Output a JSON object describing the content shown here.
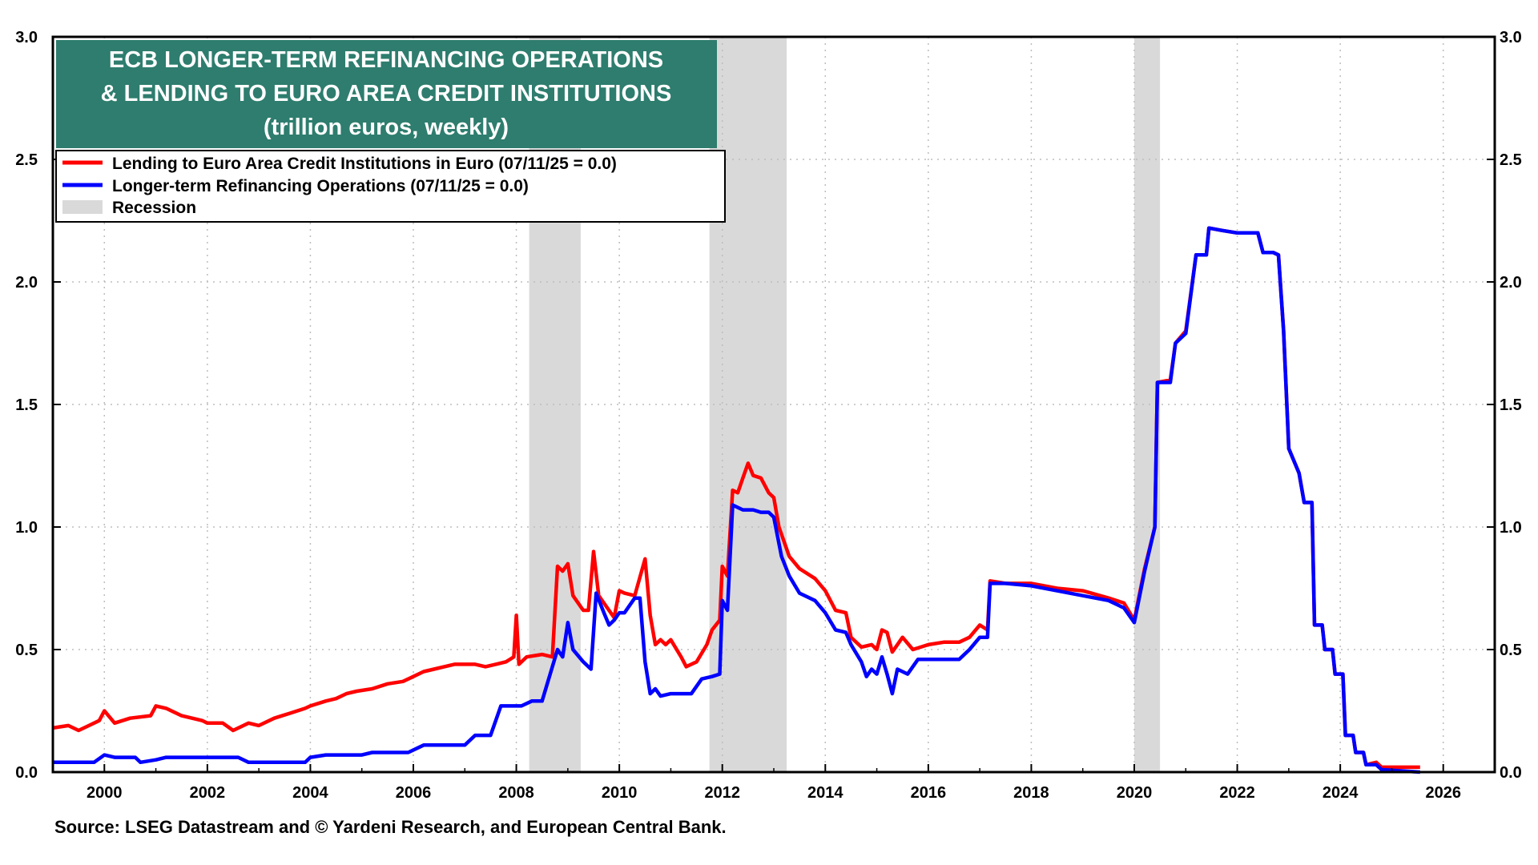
{
  "chart_data": {
    "type": "line",
    "title": "ECB LONGER-TERM REFINANCING OPERATIONS",
    "title_line2": "& LENDING TO EURO AREA CREDIT INSTITUTIONS",
    "subtitle": "(trillion euros, weekly)",
    "source": "Source: LSEG Datastream and © Yardeni Research, and European Central Bank.",
    "colors": {
      "title_bg": "#2e7d6e",
      "red": "#ff0000",
      "blue": "#0000ff",
      "recession": "#d9d9d9",
      "grid": "#bdbdbd"
    },
    "grid": true,
    "legend_position": "top-left",
    "xlim": [
      1999.0,
      2027.0
    ],
    "ylim": [
      0.0,
      3.0
    ],
    "x_ticks": [
      "2000",
      "2002",
      "2004",
      "2006",
      "2008",
      "2010",
      "2012",
      "2014",
      "2016",
      "2018",
      "2020",
      "2022",
      "2024",
      "2026"
    ],
    "y_ticks_left": [
      "0.0",
      "0.5",
      "1.0",
      "1.5",
      "2.0",
      "2.5",
      "3.0"
    ],
    "y_ticks_right": [
      "0.0",
      "0.5",
      "1.0",
      "1.5",
      "2.0",
      "2.5",
      "3.0"
    ],
    "legend": [
      {
        "label": "Lending to Euro Area Credit Institutions in Euro  (07/11/25 = 0.0)",
        "color": "#ff0000",
        "kind": "line"
      },
      {
        "label": "Longer-term Refinancing Operations (07/11/25 = 0.0)",
        "color": "#0000ff",
        "kind": "line"
      },
      {
        "label": "Recession",
        "color": "#d9d9d9",
        "kind": "box"
      }
    ],
    "recessions": [
      [
        2008.25,
        2009.25
      ],
      [
        2011.75,
        2013.25
      ],
      [
        2020.0,
        2020.5
      ]
    ],
    "series": [
      {
        "name": "Lending to Euro Area Credit Institutions in Euro",
        "color": "#ff0000",
        "points": [
          [
            1999.0,
            0.18
          ],
          [
            1999.3,
            0.19
          ],
          [
            1999.5,
            0.17
          ],
          [
            1999.7,
            0.19
          ],
          [
            1999.9,
            0.21
          ],
          [
            2000.0,
            0.25
          ],
          [
            2000.2,
            0.2
          ],
          [
            2000.5,
            0.22
          ],
          [
            2000.9,
            0.23
          ],
          [
            2001.0,
            0.27
          ],
          [
            2001.2,
            0.26
          ],
          [
            2001.5,
            0.23
          ],
          [
            2001.9,
            0.21
          ],
          [
            2002.0,
            0.2
          ],
          [
            2002.3,
            0.2
          ],
          [
            2002.5,
            0.17
          ],
          [
            2002.8,
            0.2
          ],
          [
            2003.0,
            0.19
          ],
          [
            2003.3,
            0.22
          ],
          [
            2003.6,
            0.24
          ],
          [
            2003.9,
            0.26
          ],
          [
            2004.0,
            0.27
          ],
          [
            2004.3,
            0.29
          ],
          [
            2004.5,
            0.3
          ],
          [
            2004.7,
            0.32
          ],
          [
            2004.9,
            0.33
          ],
          [
            2005.2,
            0.34
          ],
          [
            2005.5,
            0.36
          ],
          [
            2005.8,
            0.37
          ],
          [
            2006.0,
            0.39
          ],
          [
            2006.2,
            0.41
          ],
          [
            2006.4,
            0.42
          ],
          [
            2006.6,
            0.43
          ],
          [
            2006.8,
            0.44
          ],
          [
            2007.0,
            0.44
          ],
          [
            2007.2,
            0.44
          ],
          [
            2007.4,
            0.43
          ],
          [
            2007.6,
            0.44
          ],
          [
            2007.8,
            0.45
          ],
          [
            2007.95,
            0.47
          ],
          [
            2008.0,
            0.64
          ],
          [
            2008.05,
            0.44
          ],
          [
            2008.2,
            0.47
          ],
          [
            2008.5,
            0.48
          ],
          [
            2008.7,
            0.47
          ],
          [
            2008.8,
            0.84
          ],
          [
            2008.9,
            0.82
          ],
          [
            2009.0,
            0.85
          ],
          [
            2009.1,
            0.72
          ],
          [
            2009.3,
            0.66
          ],
          [
            2009.4,
            0.66
          ],
          [
            2009.5,
            0.9
          ],
          [
            2009.6,
            0.72
          ],
          [
            2009.8,
            0.66
          ],
          [
            2009.9,
            0.63
          ],
          [
            2010.0,
            0.74
          ],
          [
            2010.1,
            0.73
          ],
          [
            2010.3,
            0.72
          ],
          [
            2010.5,
            0.87
          ],
          [
            2010.6,
            0.64
          ],
          [
            2010.7,
            0.52
          ],
          [
            2010.8,
            0.54
          ],
          [
            2010.9,
            0.52
          ],
          [
            2011.0,
            0.54
          ],
          [
            2011.2,
            0.47
          ],
          [
            2011.3,
            0.43
          ],
          [
            2011.5,
            0.45
          ],
          [
            2011.7,
            0.52
          ],
          [
            2011.8,
            0.58
          ],
          [
            2011.95,
            0.62
          ],
          [
            2012.0,
            0.84
          ],
          [
            2012.1,
            0.8
          ],
          [
            2012.2,
            1.15
          ],
          [
            2012.3,
            1.14
          ],
          [
            2012.4,
            1.2
          ],
          [
            2012.5,
            1.26
          ],
          [
            2012.6,
            1.21
          ],
          [
            2012.75,
            1.2
          ],
          [
            2012.9,
            1.14
          ],
          [
            2013.0,
            1.12
          ],
          [
            2013.1,
            1.0
          ],
          [
            2013.3,
            0.88
          ],
          [
            2013.5,
            0.83
          ],
          [
            2013.8,
            0.79
          ],
          [
            2014.0,
            0.74
          ],
          [
            2014.2,
            0.66
          ],
          [
            2014.4,
            0.65
          ],
          [
            2014.5,
            0.55
          ],
          [
            2014.7,
            0.51
          ],
          [
            2014.9,
            0.52
          ],
          [
            2015.0,
            0.5
          ],
          [
            2015.1,
            0.58
          ],
          [
            2015.2,
            0.57
          ],
          [
            2015.3,
            0.49
          ],
          [
            2015.5,
            0.55
          ],
          [
            2015.7,
            0.5
          ],
          [
            2016.0,
            0.52
          ],
          [
            2016.3,
            0.53
          ],
          [
            2016.6,
            0.53
          ],
          [
            2016.8,
            0.55
          ],
          [
            2017.0,
            0.6
          ],
          [
            2017.15,
            0.58
          ],
          [
            2017.2,
            0.78
          ],
          [
            2017.5,
            0.77
          ],
          [
            2018.0,
            0.77
          ],
          [
            2018.5,
            0.75
          ],
          [
            2019.0,
            0.74
          ],
          [
            2019.5,
            0.71
          ],
          [
            2019.8,
            0.69
          ],
          [
            2020.0,
            0.62
          ],
          [
            2020.2,
            0.83
          ],
          [
            2020.4,
            1.0
          ],
          [
            2020.45,
            1.59
          ],
          [
            2020.7,
            1.6
          ],
          [
            2020.8,
            1.75
          ],
          [
            2021.0,
            1.8
          ],
          [
            2021.2,
            2.11
          ],
          [
            2021.4,
            2.11
          ],
          [
            2021.45,
            2.22
          ],
          [
            2021.7,
            2.21
          ],
          [
            2022.0,
            2.2
          ],
          [
            2022.4,
            2.2
          ],
          [
            2022.5,
            2.12
          ],
          [
            2022.7,
            2.12
          ],
          [
            2022.8,
            2.11
          ],
          [
            2022.9,
            1.8
          ],
          [
            2023.0,
            1.32
          ],
          [
            2023.2,
            1.22
          ],
          [
            2023.3,
            1.1
          ],
          [
            2023.45,
            1.1
          ],
          [
            2023.5,
            0.6
          ],
          [
            2023.65,
            0.6
          ],
          [
            2023.7,
            0.5
          ],
          [
            2023.85,
            0.5
          ],
          [
            2023.9,
            0.4
          ],
          [
            2024.05,
            0.4
          ],
          [
            2024.1,
            0.15
          ],
          [
            2024.25,
            0.15
          ],
          [
            2024.3,
            0.08
          ],
          [
            2024.45,
            0.08
          ],
          [
            2024.5,
            0.03
          ],
          [
            2024.7,
            0.04
          ],
          [
            2024.8,
            0.02
          ],
          [
            2025.55,
            0.02
          ]
        ]
      },
      {
        "name": "Longer-term Refinancing Operations",
        "color": "#0000ff",
        "points": [
          [
            1999.0,
            0.04
          ],
          [
            1999.8,
            0.04
          ],
          [
            2000.0,
            0.07
          ],
          [
            2000.2,
            0.06
          ],
          [
            2000.6,
            0.06
          ],
          [
            2000.7,
            0.04
          ],
          [
            2001.0,
            0.05
          ],
          [
            2001.2,
            0.06
          ],
          [
            2002.6,
            0.06
          ],
          [
            2002.8,
            0.04
          ],
          [
            2003.9,
            0.04
          ],
          [
            2004.0,
            0.06
          ],
          [
            2004.3,
            0.07
          ],
          [
            2005.0,
            0.07
          ],
          [
            2005.2,
            0.08
          ],
          [
            2005.9,
            0.08
          ],
          [
            2006.2,
            0.11
          ],
          [
            2007.0,
            0.11
          ],
          [
            2007.2,
            0.15
          ],
          [
            2007.5,
            0.15
          ],
          [
            2007.7,
            0.27
          ],
          [
            2007.9,
            0.27
          ],
          [
            2008.1,
            0.27
          ],
          [
            2008.3,
            0.29
          ],
          [
            2008.5,
            0.29
          ],
          [
            2008.8,
            0.5
          ],
          [
            2008.9,
            0.47
          ],
          [
            2009.0,
            0.61
          ],
          [
            2009.1,
            0.5
          ],
          [
            2009.3,
            0.45
          ],
          [
            2009.45,
            0.42
          ],
          [
            2009.55,
            0.73
          ],
          [
            2009.7,
            0.65
          ],
          [
            2009.8,
            0.6
          ],
          [
            2009.9,
            0.62
          ],
          [
            2010.0,
            0.65
          ],
          [
            2010.1,
            0.65
          ],
          [
            2010.3,
            0.71
          ],
          [
            2010.4,
            0.71
          ],
          [
            2010.5,
            0.45
          ],
          [
            2010.6,
            0.32
          ],
          [
            2010.7,
            0.34
          ],
          [
            2010.8,
            0.31
          ],
          [
            2011.0,
            0.32
          ],
          [
            2011.2,
            0.32
          ],
          [
            2011.4,
            0.32
          ],
          [
            2011.6,
            0.38
          ],
          [
            2011.8,
            0.39
          ],
          [
            2011.95,
            0.4
          ],
          [
            2012.0,
            0.7
          ],
          [
            2012.1,
            0.66
          ],
          [
            2012.2,
            1.09
          ],
          [
            2012.4,
            1.07
          ],
          [
            2012.6,
            1.07
          ],
          [
            2012.75,
            1.06
          ],
          [
            2012.9,
            1.06
          ],
          [
            2013.0,
            1.04
          ],
          [
            2013.15,
            0.88
          ],
          [
            2013.3,
            0.8
          ],
          [
            2013.5,
            0.73
          ],
          [
            2013.8,
            0.7
          ],
          [
            2014.0,
            0.65
          ],
          [
            2014.2,
            0.58
          ],
          [
            2014.4,
            0.57
          ],
          [
            2014.5,
            0.52
          ],
          [
            2014.7,
            0.45
          ],
          [
            2014.8,
            0.39
          ],
          [
            2014.9,
            0.42
          ],
          [
            2015.0,
            0.4
          ],
          [
            2015.1,
            0.47
          ],
          [
            2015.2,
            0.4
          ],
          [
            2015.3,
            0.32
          ],
          [
            2015.4,
            0.42
          ],
          [
            2015.6,
            0.4
          ],
          [
            2015.8,
            0.46
          ],
          [
            2016.0,
            0.46
          ],
          [
            2016.3,
            0.46
          ],
          [
            2016.6,
            0.46
          ],
          [
            2016.8,
            0.5
          ],
          [
            2017.0,
            0.55
          ],
          [
            2017.15,
            0.55
          ],
          [
            2017.2,
            0.77
          ],
          [
            2017.5,
            0.77
          ],
          [
            2018.0,
            0.76
          ],
          [
            2018.5,
            0.74
          ],
          [
            2019.0,
            0.72
          ],
          [
            2019.5,
            0.7
          ],
          [
            2019.8,
            0.67
          ],
          [
            2020.0,
            0.61
          ],
          [
            2020.2,
            0.82
          ],
          [
            2020.4,
            1.0
          ],
          [
            2020.45,
            1.59
          ],
          [
            2020.7,
            1.59
          ],
          [
            2020.8,
            1.75
          ],
          [
            2021.0,
            1.79
          ],
          [
            2021.2,
            2.11
          ],
          [
            2021.4,
            2.11
          ],
          [
            2021.45,
            2.22
          ],
          [
            2021.7,
            2.21
          ],
          [
            2022.0,
            2.2
          ],
          [
            2022.4,
            2.2
          ],
          [
            2022.5,
            2.12
          ],
          [
            2022.7,
            2.12
          ],
          [
            2022.8,
            2.11
          ],
          [
            2022.9,
            1.8
          ],
          [
            2023.0,
            1.32
          ],
          [
            2023.2,
            1.22
          ],
          [
            2023.3,
            1.1
          ],
          [
            2023.45,
            1.1
          ],
          [
            2023.5,
            0.6
          ],
          [
            2023.65,
            0.6
          ],
          [
            2023.7,
            0.5
          ],
          [
            2023.85,
            0.5
          ],
          [
            2023.9,
            0.4
          ],
          [
            2024.05,
            0.4
          ],
          [
            2024.1,
            0.15
          ],
          [
            2024.25,
            0.15
          ],
          [
            2024.3,
            0.08
          ],
          [
            2024.45,
            0.08
          ],
          [
            2024.5,
            0.03
          ],
          [
            2024.7,
            0.03
          ],
          [
            2024.8,
            0.01
          ],
          [
            2025.55,
            0.0
          ]
        ]
      }
    ]
  }
}
